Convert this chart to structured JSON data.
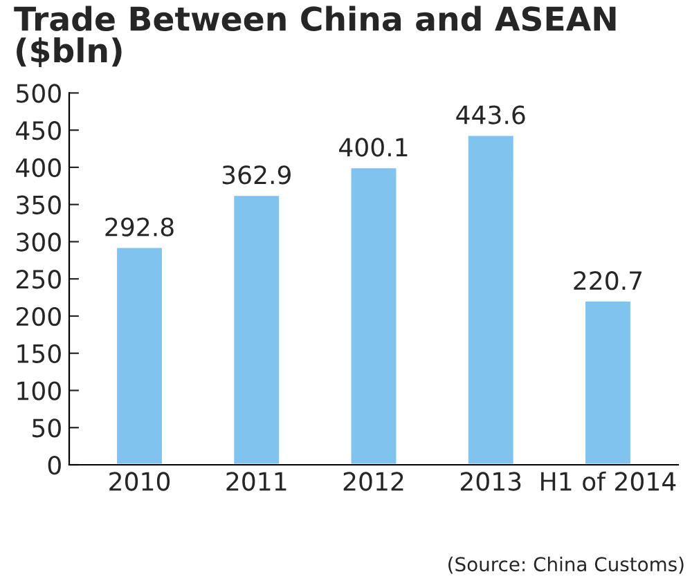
{
  "chart_data": {
    "type": "bar",
    "title": "Trade Between China and ASEAN\n($bln)",
    "categories": [
      "2010",
      "2011",
      "2012",
      "2013",
      "H1 of 2014"
    ],
    "values": [
      292.8,
      362.9,
      400.1,
      443.6,
      220.7
    ],
    "color": "#7fc3ee",
    "ylim": [
      0,
      500
    ],
    "yticks": [
      0,
      50,
      100,
      150,
      200,
      250,
      300,
      350,
      400,
      450,
      500
    ],
    "grid": false,
    "data_labels": true,
    "annotations": [
      "(Source: China Customs)"
    ]
  }
}
